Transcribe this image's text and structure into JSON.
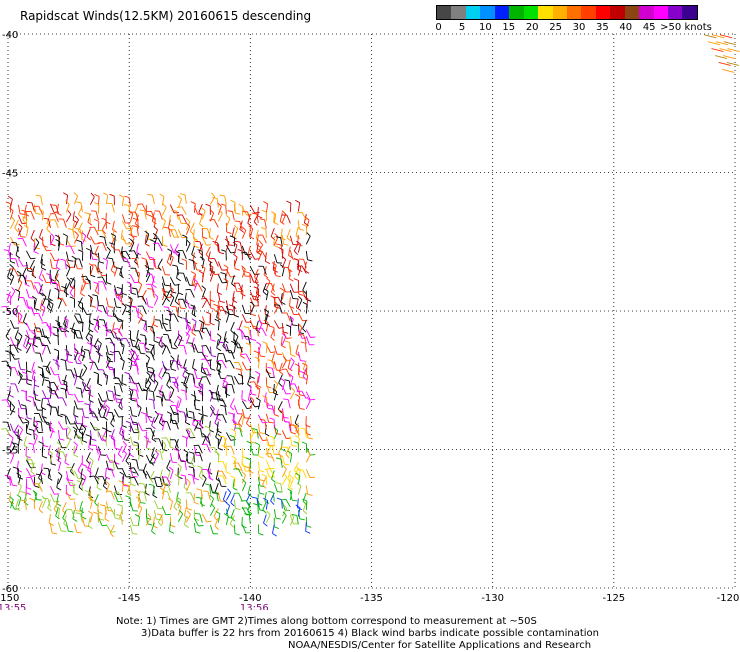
{
  "title": "Rapidscat Winds(12.5KM) 20160615 descending",
  "colorbar": {
    "colors": [
      "#474747",
      "#808080",
      "#00d0f0",
      "#0090ff",
      "#0020ff",
      "#00b400",
      "#00e000",
      "#ffe000",
      "#ffb000",
      "#ff7000",
      "#ff4000",
      "#ff0000",
      "#c00000",
      "#8b4513",
      "#d000d0",
      "#ff00ff",
      "#8800cc",
      "#3c0090"
    ],
    "labels": [
      "0",
      "5",
      "10",
      "15",
      "20",
      "25",
      "30",
      "35",
      "40",
      "45",
      ">50 knots"
    ]
  },
  "map": {
    "lon_range": [
      -150,
      -120
    ],
    "lat_range": [
      -60,
      -40
    ],
    "lon_ticks": [
      {
        "value": -150,
        "label": "-150"
      },
      {
        "value": -145,
        "label": "-145"
      },
      {
        "value": -140,
        "label": "-140"
      },
      {
        "value": -135,
        "label": "-135"
      },
      {
        "value": -130,
        "label": "-130"
      },
      {
        "value": -125,
        "label": "-125"
      },
      {
        "value": -120,
        "label": "-120"
      }
    ],
    "lat_ticks": [
      {
        "value": -40,
        "label": "-40"
      },
      {
        "value": -45,
        "label": "-45"
      },
      {
        "value": -50,
        "label": "-50"
      },
      {
        "value": -55,
        "label": "-55"
      },
      {
        "value": -60,
        "label": "-60"
      }
    ],
    "time_labels": [
      {
        "lon": -150,
        "label": "13:55"
      },
      {
        "lon": -140,
        "label": "13:56"
      }
    ],
    "swaths": [
      {
        "lon_min": -150,
        "lon_max": -137.5,
        "lat_top": -46.2,
        "lat_bot": -57.8
      },
      {
        "lon_min": -121,
        "lon_max": -119.5,
        "lat_top": -40.0,
        "lat_bot": -41.5
      }
    ]
  },
  "notes": {
    "line1": "Note: 1) Times are GMT 2)Times along bottom correspond to measurement at ~50S",
    "line2": "3)Data buffer is 22 hrs from 20160615 4) Black wind barbs indicate possible contamination",
    "line3": "NOAA/NESDIS/Center for Satellite Applications and Research"
  }
}
